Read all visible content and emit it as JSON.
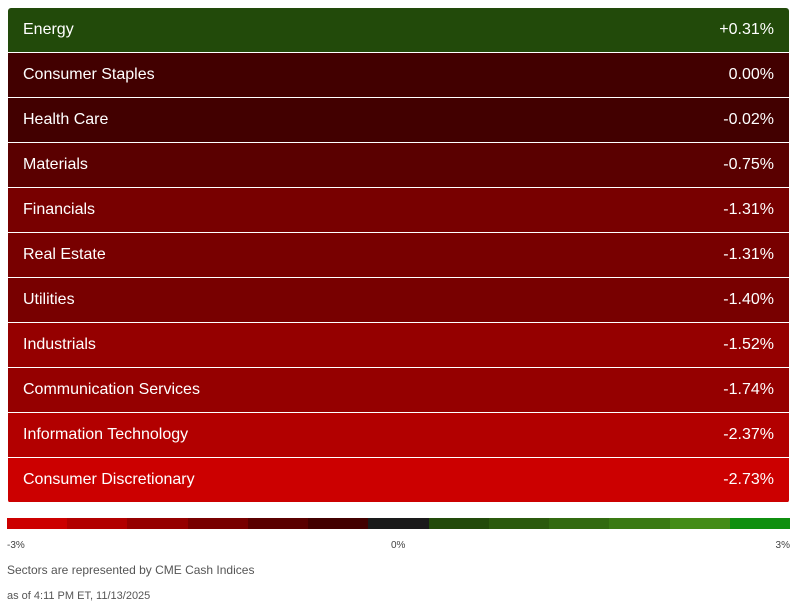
{
  "chart_data": {
    "type": "heatmap",
    "sectors": [
      {
        "name": "Energy",
        "label": "+0.31%",
        "value": 0.31,
        "color": "#224a0a"
      },
      {
        "name": "Consumer Staples",
        "label": "0.00%",
        "value": 0.0,
        "color": "#420000"
      },
      {
        "name": "Health Care",
        "label": "-0.02%",
        "value": -0.02,
        "color": "#420000"
      },
      {
        "name": "Materials",
        "label": "-0.75%",
        "value": -0.75,
        "color": "#5a0000"
      },
      {
        "name": "Financials",
        "label": "-1.31%",
        "value": -1.31,
        "color": "#780000"
      },
      {
        "name": "Real Estate",
        "label": "-1.31%",
        "value": -1.31,
        "color": "#780000"
      },
      {
        "name": "Utilities",
        "label": "-1.40%",
        "value": -1.4,
        "color": "#780000"
      },
      {
        "name": "Industrials",
        "label": "-1.52%",
        "value": -1.52,
        "color": "#950000"
      },
      {
        "name": "Communication Services",
        "label": "-1.74%",
        "value": -1.74,
        "color": "#950000"
      },
      {
        "name": "Information Technology",
        "label": "-2.37%",
        "value": -2.37,
        "color": "#b20000"
      },
      {
        "name": "Consumer Discretionary",
        "label": "-2.73%",
        "value": -2.73,
        "color": "#cc0000"
      }
    ],
    "scale": {
      "min_label": "-3%",
      "mid_label": "0%",
      "max_label": "3%",
      "colors": [
        "#cc0000",
        "#b20000",
        "#950000",
        "#780000",
        "#5a0000",
        "#420000",
        "#1a1a1a",
        "#224a0a",
        "#2b5a0d",
        "#326a10",
        "#3a7a13",
        "#448c17",
        "#0f8f0f"
      ]
    }
  },
  "footer": {
    "source": "Sectors are represented by CME Cash Indices",
    "timestamp": "as of 4:11 PM ET, 11/13/2025"
  }
}
